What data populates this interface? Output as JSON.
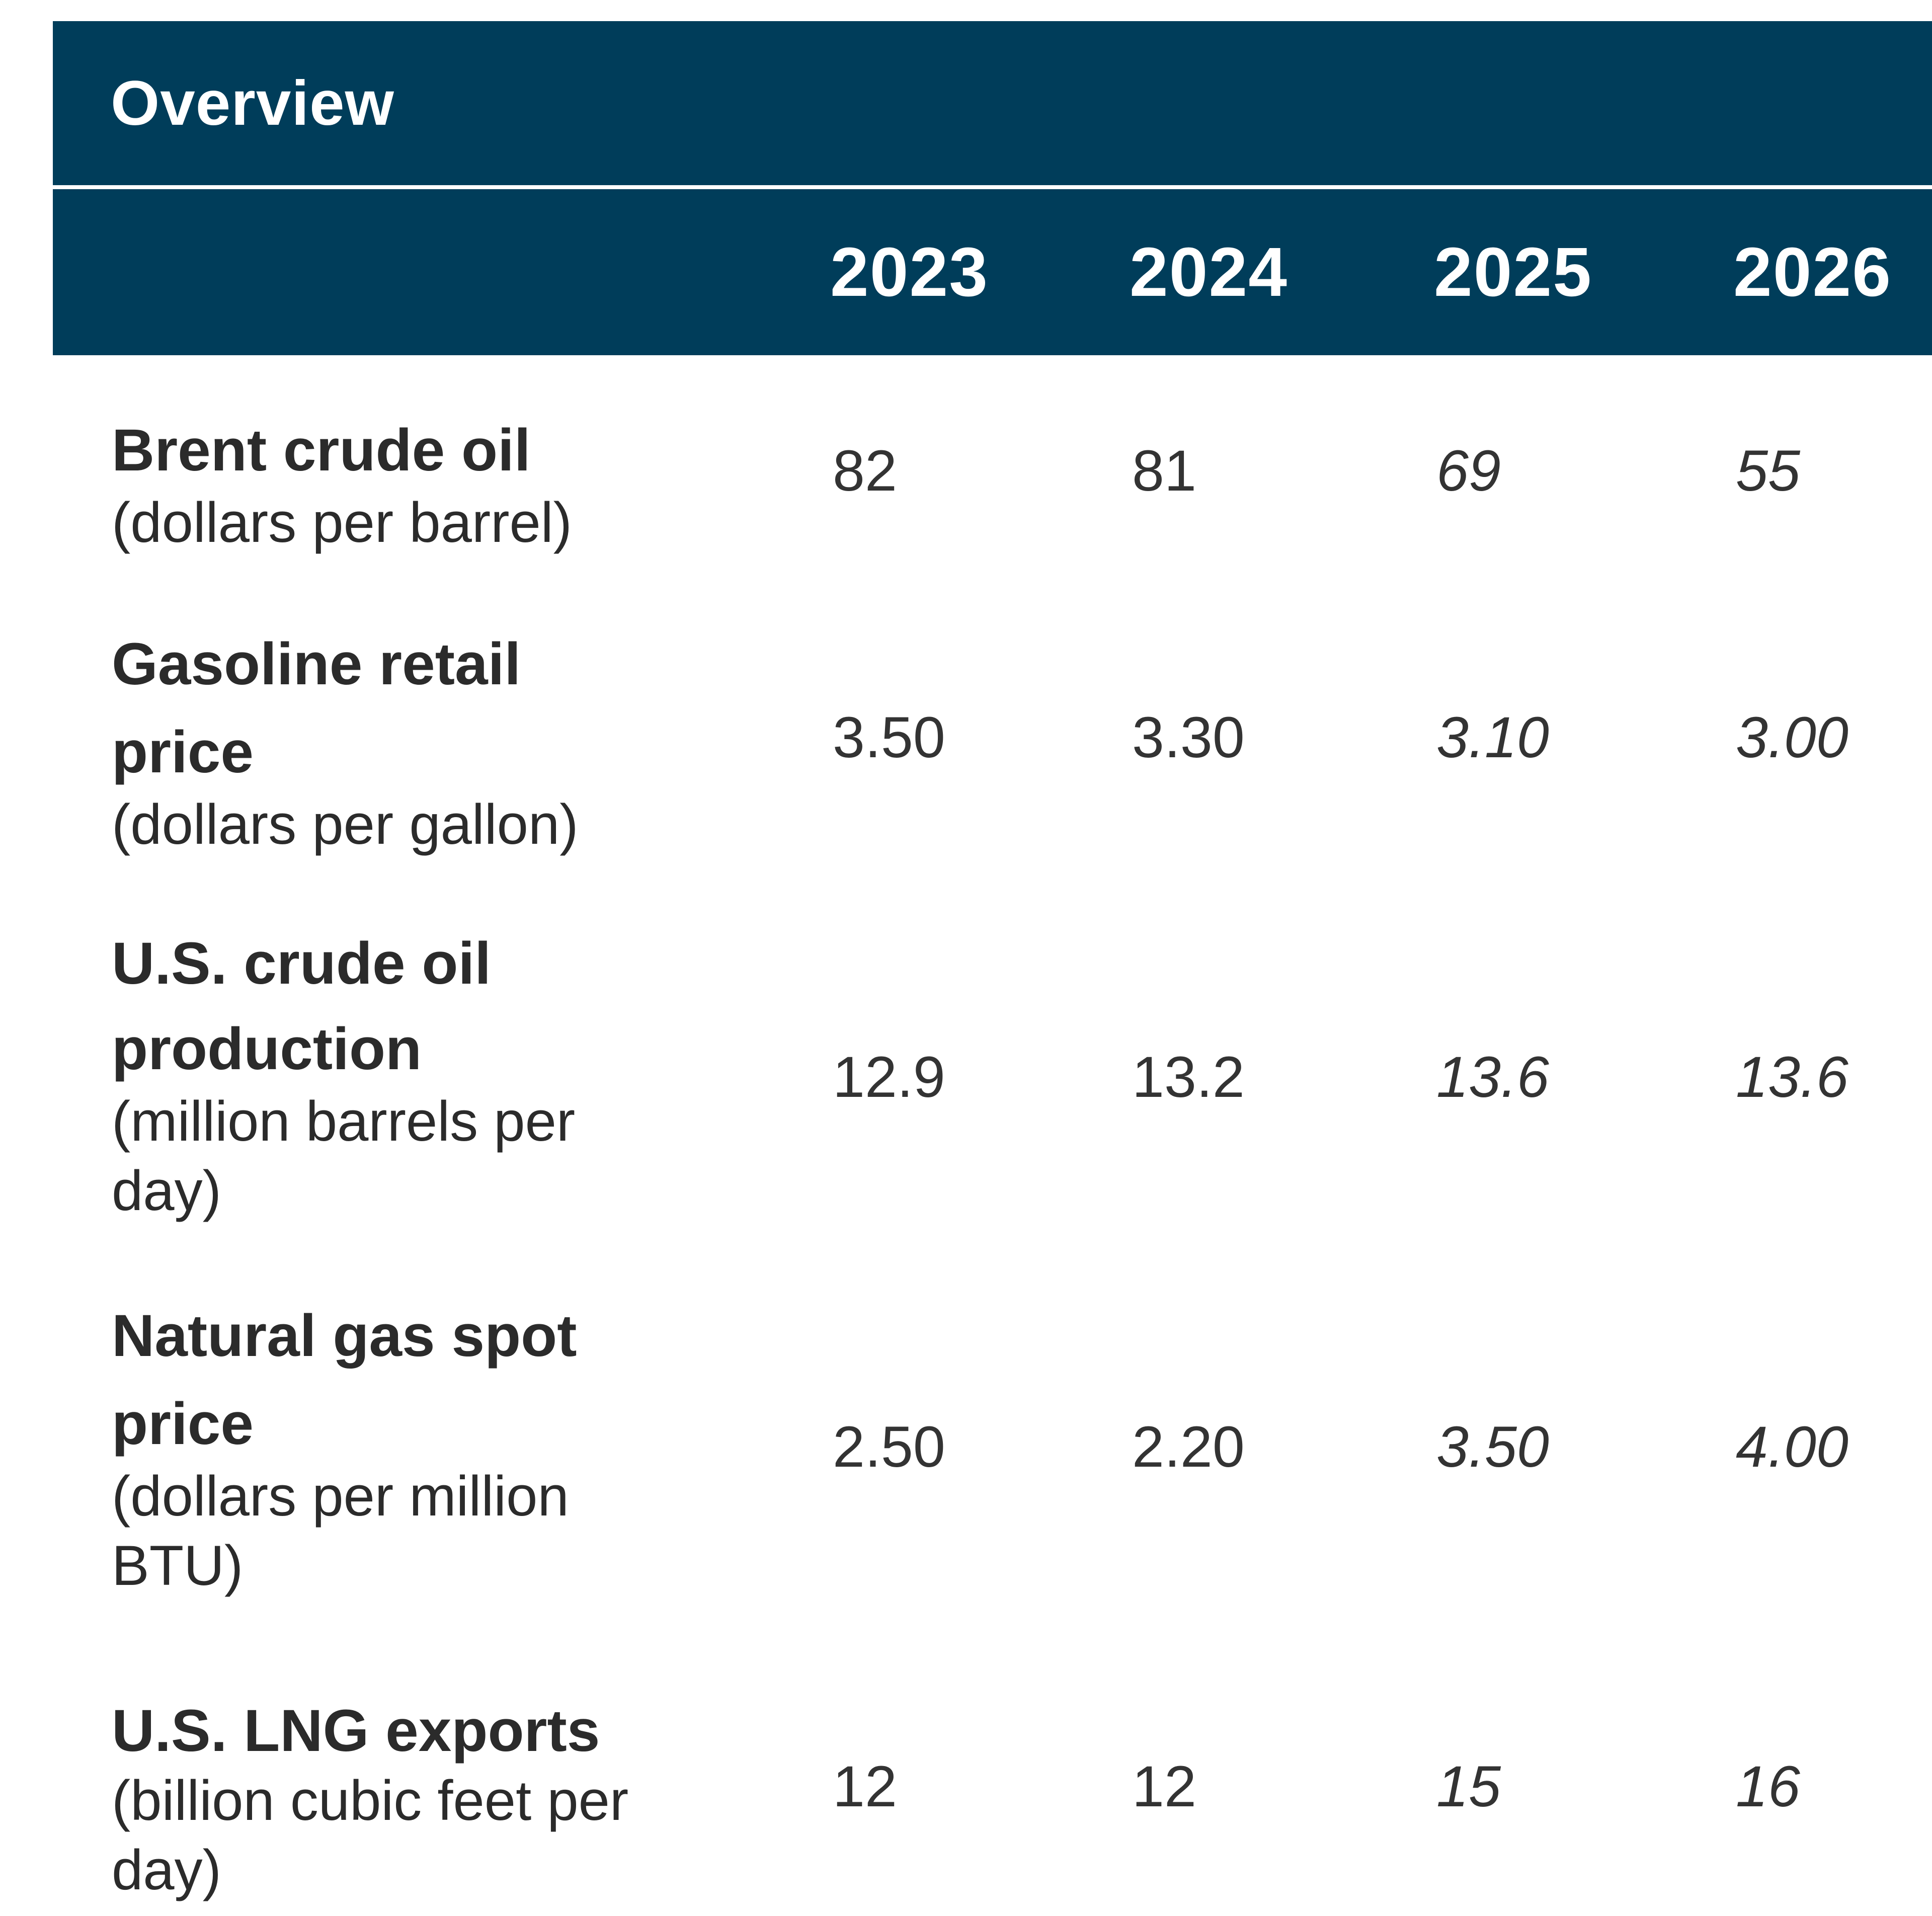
{
  "title": "Overview",
  "years": [
    "2023",
    "2024",
    "2025",
    "2026"
  ],
  "rows": [
    {
      "label_lines": [
        "Brent crude oil"
      ],
      "unit_lines": [
        "(dollars per barrel)"
      ],
      "values": [
        "82",
        "81",
        "69",
        "55"
      ]
    },
    {
      "label_lines": [
        "Gasoline retail",
        "price"
      ],
      "unit_lines": [
        "(dollars per gallon)"
      ],
      "values": [
        "3.50",
        "3.30",
        "3.10",
        "3.00"
      ]
    },
    {
      "label_lines": [
        "U.S. crude oil",
        "production"
      ],
      "unit_lines": [
        "(million barrels per",
        "day)"
      ],
      "values": [
        "12.9",
        "13.2",
        "13.6",
        "13.6"
      ]
    },
    {
      "label_lines": [
        "Natural gas spot",
        "price"
      ],
      "unit_lines": [
        "(dollars per million",
        "BTU)"
      ],
      "values": [
        "2.50",
        "2.20",
        "3.50",
        "4.00"
      ]
    },
    {
      "label_lines": [
        "U.S. LNG exports"
      ],
      "unit_lines": [
        "(billion cubic feet per",
        "day)"
      ],
      "values": [
        "12",
        "12",
        "15",
        "16"
      ]
    }
  ],
  "colors": {
    "header_bg": "#003d5a",
    "header_text": "#ffffff",
    "body_text": "#2b2b2b"
  }
}
